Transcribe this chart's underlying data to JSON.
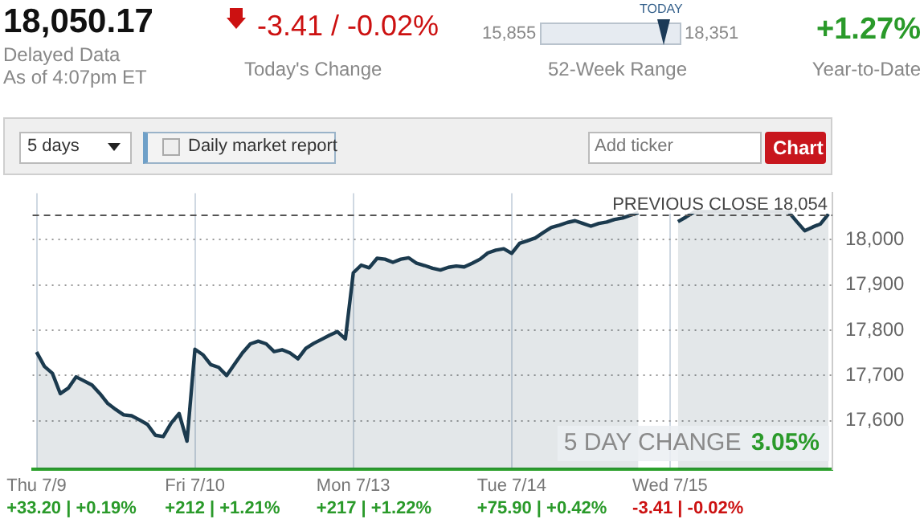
{
  "chart_data": {
    "type": "area",
    "categories": [
      "Thu 7/9",
      null,
      null,
      null,
      null,
      null,
      null,
      null,
      null,
      null,
      null,
      null,
      null,
      null,
      null,
      null,
      null,
      null,
      null,
      null,
      "Fri 7/10",
      null,
      null,
      null,
      null,
      null,
      null,
      null,
      null,
      null,
      null,
      null,
      null,
      null,
      null,
      null,
      null,
      null,
      null,
      null,
      "Mon 7/13",
      null,
      null,
      null,
      null,
      null,
      null,
      null,
      null,
      null,
      null,
      null,
      null,
      null,
      null,
      null,
      null,
      null,
      null,
      null,
      "Tue 7/14",
      null,
      null,
      null,
      null,
      null,
      null,
      null,
      null,
      null,
      null,
      null,
      null,
      null,
      null,
      null,
      null,
      null,
      null,
      null,
      "Wed 7/15",
      null,
      null,
      null,
      null,
      null,
      null,
      null,
      null,
      null,
      null,
      null,
      null,
      null,
      null,
      null,
      null,
      null,
      null,
      null,
      null
    ],
    "series": [
      {
        "color": "#1b3a4e",
        "values": [
          17752,
          17720,
          17705,
          17660,
          17672,
          17697,
          17688,
          17679,
          17660,
          17638,
          17625,
          17613,
          17611,
          17602,
          17592,
          17568,
          17565,
          17595,
          17616,
          17555,
          17758,
          17746,
          17724,
          17718,
          17700,
          17725,
          17750,
          17770,
          17776,
          17770,
          17753,
          17757,
          17750,
          17737,
          17760,
          17771,
          17780,
          17789,
          17797,
          17781,
          17927,
          17944,
          17938,
          17959,
          17957,
          17950,
          17957,
          17960,
          17948,
          17943,
          17937,
          17933,
          17939,
          17942,
          17940,
          17948,
          17957,
          17971,
          17977,
          17980,
          17970,
          17992,
          17998,
          18004,
          18016,
          18027,
          18032,
          18038,
          18042,
          18036,
          18030,
          18036,
          18039,
          18045,
          18048,
          18054,
          18060,
          null,
          null,
          null,
          null,
          18040,
          18050,
          18061,
          18062,
          18062,
          18062,
          18062,
          18062,
          18062,
          18062,
          18062,
          18062,
          18062,
          18062,
          18061,
          18040,
          18020,
          18028,
          18035,
          18057
        ]
      }
    ],
    "ylim": [
      17493,
      18103
    ],
    "yticks": [
      {
        "value": 17600,
        "label": "17,600"
      },
      {
        "value": 17700,
        "label": "17,700"
      },
      {
        "value": 17800,
        "label": "17,800"
      },
      {
        "value": 17900,
        "label": "17,900"
      },
      {
        "value": 18000,
        "label": "18,000"
      }
    ],
    "grid": true,
    "ref_lines": [
      {
        "axis": "y",
        "value": 18054,
        "label": "PREVIOUS CLOSE 18,054",
        "line_style": "dashed",
        "color": "#555555"
      }
    ],
    "annotations": [
      "18,050.17",
      "Delayed Data",
      "As of 4:07pm ET",
      "-3.41 / -0.02%",
      "Today's Change",
      "15,855",
      "18,351",
      "TODAY",
      "52-Week Range",
      "+1.27%",
      "Year-to-Date",
      "5 days",
      "Daily market report",
      "Add ticker",
      "Chart",
      "5 DAY CHANGE",
      "3.05%",
      "+33.20 | +0.19%",
      "+212 | +1.21%",
      "+217 | +1.22%",
      "+75.90 | +0.42%",
      "-3.41 | -0.02%"
    ]
  }
}
